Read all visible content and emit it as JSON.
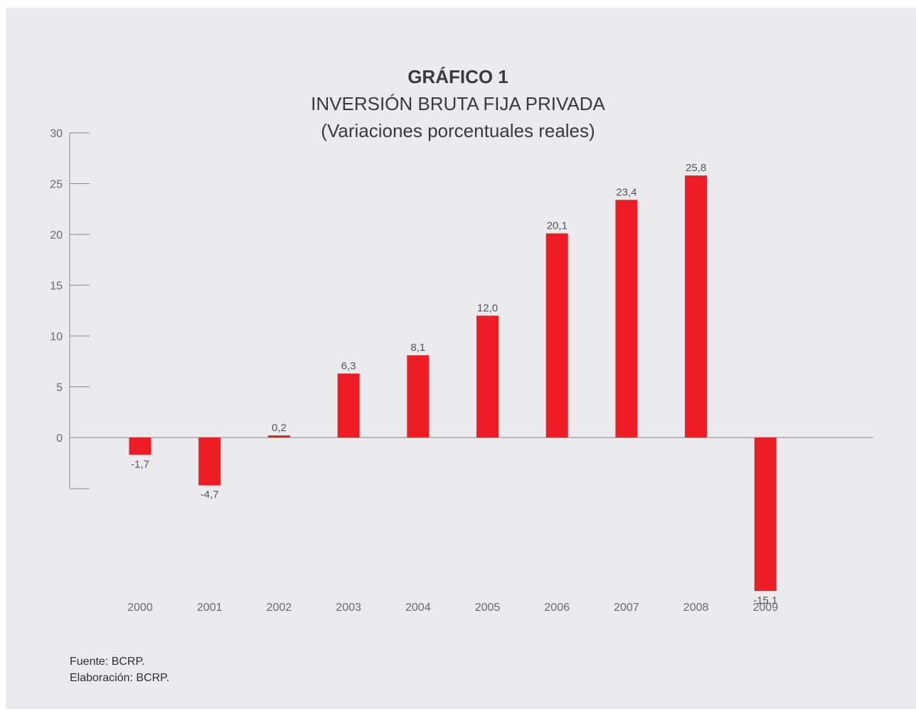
{
  "chart_data": {
    "type": "bar",
    "title": "GRÁFICO 1",
    "subtitle": "INVERSIÓN BRUTA FIJA PRIVADA",
    "subtitle2": "(Variaciones porcentuales reales)",
    "categories": [
      "2000",
      "2001",
      "2002",
      "2003",
      "2004",
      "2005",
      "2006",
      "2007",
      "2008",
      "2009"
    ],
    "values": [
      -1.7,
      -4.7,
      0.2,
      6.3,
      8.1,
      12.0,
      20.1,
      23.4,
      25.8,
      -15.1
    ],
    "value_labels": [
      "-1,7",
      "-4,7",
      "0,2",
      "6,3",
      "8,1",
      "12,0",
      "20,1",
      "23,4",
      "25,8",
      "-15,1"
    ],
    "y_ticks": [
      "30",
      "25",
      "20",
      "15",
      "10",
      "5",
      "0"
    ],
    "ylim": [
      -5,
      30
    ],
    "bar_color": "#ee1c25",
    "xlabel": "",
    "ylabel": "",
    "grid": false,
    "legend": "none"
  },
  "footer": {
    "source": "Fuente: BCRP.",
    "elaboration": "Elaboración: BCRP."
  }
}
